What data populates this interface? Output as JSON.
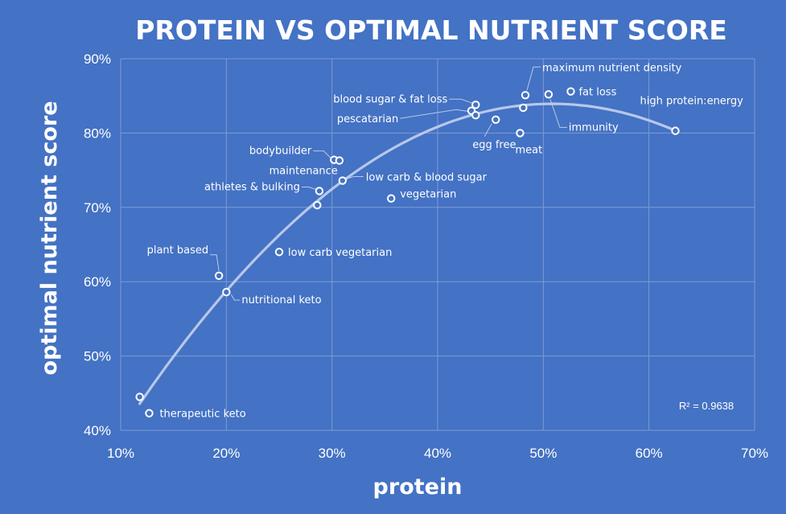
{
  "chart_data": {
    "type": "scatter",
    "title": "PROTEIN VS OPTIMAL NUTRIENT SCORE",
    "xlabel": "protein",
    "ylabel": "optimal nutrient  score",
    "xlim": [
      0.1,
      0.7
    ],
    "ylim": [
      0.4,
      0.9
    ],
    "x_ticks": [
      {
        "value": 0.1,
        "label": "10%"
      },
      {
        "value": 0.2,
        "label": "20%"
      },
      {
        "value": 0.3,
        "label": "30%"
      },
      {
        "value": 0.4,
        "label": "40%"
      },
      {
        "value": 0.5,
        "label": "50%"
      },
      {
        "value": 0.6,
        "label": "60%"
      },
      {
        "value": 0.7,
        "label": "70%"
      }
    ],
    "y_ticks": [
      {
        "value": 0.4,
        "label": "40%"
      },
      {
        "value": 0.5,
        "label": "50%"
      },
      {
        "value": 0.6,
        "label": "60%"
      },
      {
        "value": 0.7,
        "label": "70%"
      },
      {
        "value": 0.8,
        "label": "80%"
      },
      {
        "value": 0.9,
        "label": "90%"
      }
    ],
    "grid": true,
    "trendline": {
      "type": "polynomial-2",
      "from": 0.118,
      "to": 0.625,
      "r_squared": "R² = 0.9638"
    },
    "points": [
      {
        "x": 0.118,
        "y": 0.445,
        "label": ""
      },
      {
        "x": 0.127,
        "y": 0.423,
        "label": "therapeutic keto"
      },
      {
        "x": 0.193,
        "y": 0.608,
        "label": "plant based"
      },
      {
        "x": 0.2,
        "y": 0.586,
        "label": "nutritional keto"
      },
      {
        "x": 0.25,
        "y": 0.64,
        "label": "low carb vegetarian"
      },
      {
        "x": 0.286,
        "y": 0.703,
        "label": ""
      },
      {
        "x": 0.288,
        "y": 0.722,
        "label": "athletes & bulking"
      },
      {
        "x": 0.302,
        "y": 0.764,
        "label": "bodybuilder"
      },
      {
        "x": 0.307,
        "y": 0.763,
        "label": ""
      },
      {
        "x": 0.31,
        "y": 0.736,
        "label": "maintenance"
      },
      {
        "x": 0.356,
        "y": 0.712,
        "label": "vegetarian"
      },
      {
        "x": 0.432,
        "y": 0.83,
        "label": ""
      },
      {
        "x": 0.436,
        "y": 0.838,
        "label": "blood sugar & fat loss"
      },
      {
        "x": 0.436,
        "y": 0.824,
        "label": "pescatarian"
      },
      {
        "x": 0.455,
        "y": 0.818,
        "label": "egg free"
      },
      {
        "x": 0.478,
        "y": 0.8,
        "label": "meat"
      },
      {
        "x": 0.481,
        "y": 0.834,
        "label": ""
      },
      {
        "x": 0.483,
        "y": 0.851,
        "label": "maximum nutrient density"
      },
      {
        "x": 0.505,
        "y": 0.852,
        "label": "immunity"
      },
      {
        "x": 0.526,
        "y": 0.856,
        "label": "fat loss"
      },
      {
        "x": 0.625,
        "y": 0.803,
        "label": "high protein:energy"
      }
    ],
    "callouts": [
      {
        "label": "low carb & blood sugar",
        "x": 0.31,
        "y": 0.736
      }
    ]
  }
}
